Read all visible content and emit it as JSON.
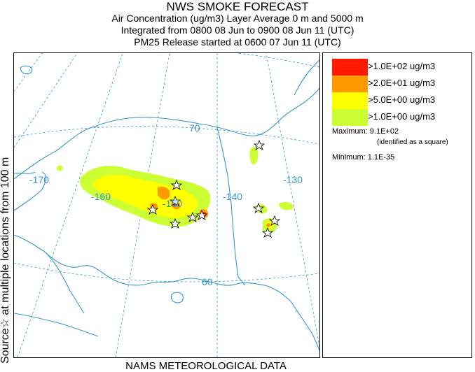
{
  "header": {
    "title": "NWS SMOKE FORECAST",
    "line2": "Air Concentration (ug/m3) Layer Average    0 m and  5000 m",
    "line3": "Integrated from 0800 08 Jun to 0900 08 Jun 11 (UTC)",
    "line4": "PM25 Release started at 0600 07 Jun 11 (UTC)"
  },
  "side_label": "Source☆   at multiple locations    from  100 m",
  "footer": "NAMS METEOROLOGICAL DATA",
  "map": {
    "longitude_labels": [
      "-170",
      "-160",
      "-150",
      "-140",
      "-130"
    ],
    "latitude_labels": [
      "70",
      "60"
    ],
    "coast_color": "#3399cc",
    "grid_color": "#3399cc"
  },
  "legend": {
    "items": [
      {
        "label": ">1.0E+02 ug/m3",
        "color": "#ff1a00"
      },
      {
        "label": ">2.0E+01 ug/m3",
        "color": "#ff9900"
      },
      {
        "label": ">5.0E+00 ug/m3",
        "color": "#ffff00"
      },
      {
        "label": ">1.0E+00 ug/m3",
        "color": "#ccff33"
      }
    ],
    "maximum": "Maximum: 9.1E+02",
    "maximum_note": "(identified as a square)",
    "minimum": "Minimum: 1.1E-35"
  }
}
